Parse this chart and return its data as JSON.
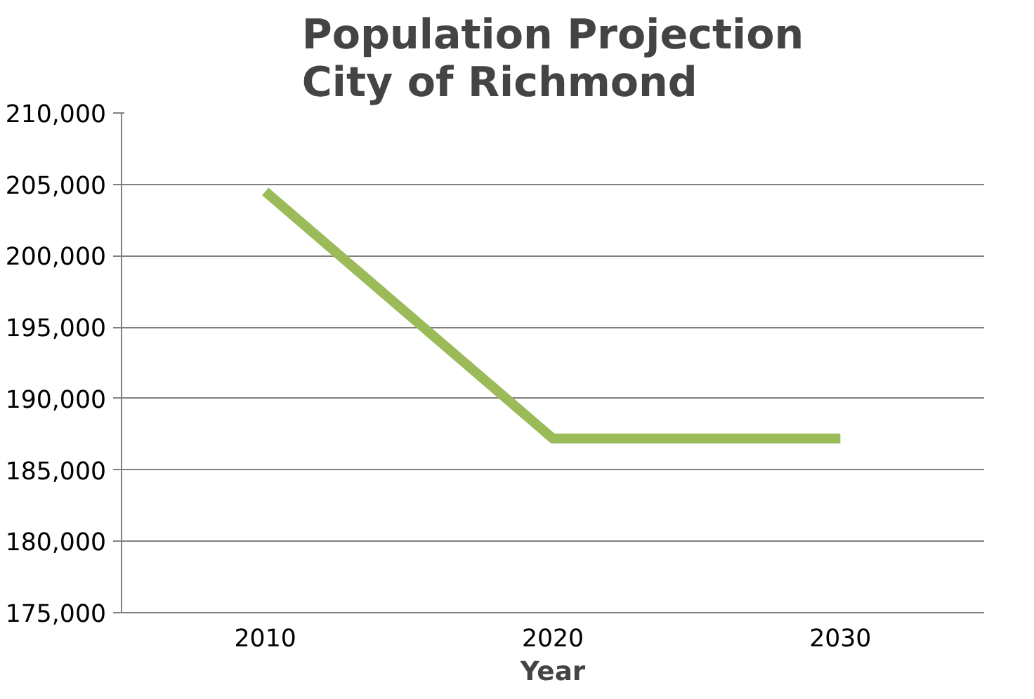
{
  "chart_data": {
    "type": "line",
    "title": "Population Projection\nCity of Richmond",
    "xlabel": "Year",
    "categories": [
      "2010",
      "2020",
      "2030"
    ],
    "series": [
      {
        "color": "#9bbb59",
        "values": [
          204500,
          187200,
          187200
        ]
      }
    ],
    "ylim": [
      175000,
      210000
    ],
    "yticks": [
      {
        "value": 175000,
        "label": "175,000"
      },
      {
        "value": 180000,
        "label": "180,000"
      },
      {
        "value": 185000,
        "label": "185,000"
      },
      {
        "value": 190000,
        "label": "190,000"
      },
      {
        "value": 195000,
        "label": "195,000"
      },
      {
        "value": 200000,
        "label": "200,000"
      },
      {
        "value": 205000,
        "label": "205,000"
      },
      {
        "value": 210000,
        "label": "210,000"
      }
    ],
    "grid": "y",
    "marker": "none",
    "line_style": "solid"
  }
}
